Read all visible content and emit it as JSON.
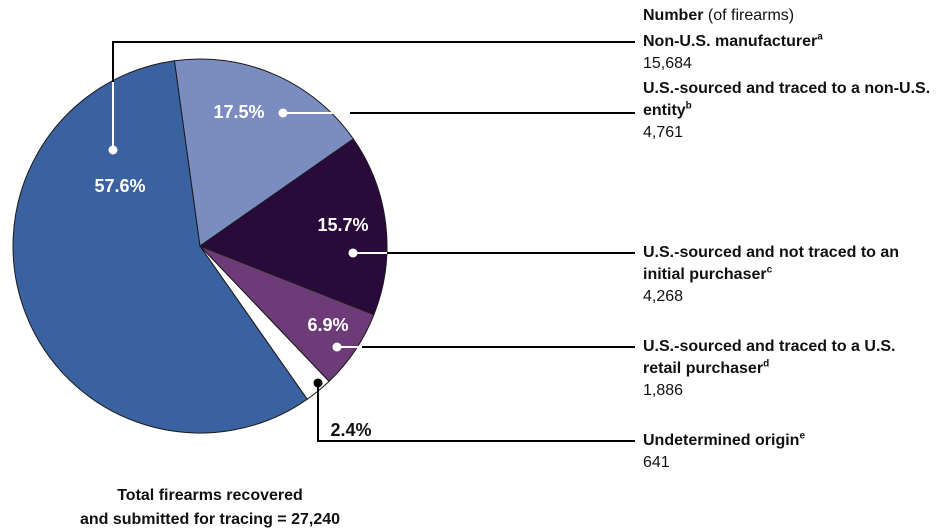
{
  "chart_data": {
    "type": "pie",
    "legend_title": "Number",
    "legend_subtitle": "(of firearms)",
    "categories": [
      "Non-U.S. manufacturer",
      "U.S.-sourced and traced to a non-U.S. entity",
      "U.S.-sourced and not traced to an initial purchaser",
      "U.S.-sourced and traced to a U.S. retail purchaser",
      "Undetermined origin"
    ],
    "superscripts": [
      "a",
      "b",
      "c",
      "d",
      "e"
    ],
    "values": [
      57.6,
      17.5,
      15.7,
      6.9,
      2.4
    ],
    "value_labels": [
      "57.6%",
      "17.5%",
      "15.7%",
      "6.9%",
      "2.4%"
    ],
    "counts": [
      15684,
      4761,
      4268,
      1886,
      641
    ],
    "count_labels": [
      "15,684",
      "4,761",
      "4,268",
      "1,886",
      "641"
    ],
    "colors": [
      "#3b62a0",
      "#7b8dc0",
      "#2a0a3a",
      "#6d3c78",
      "#ffffff"
    ],
    "note": [
      "Total firearms recovered",
      "and submitted for tracing = 27,240"
    ]
  }
}
